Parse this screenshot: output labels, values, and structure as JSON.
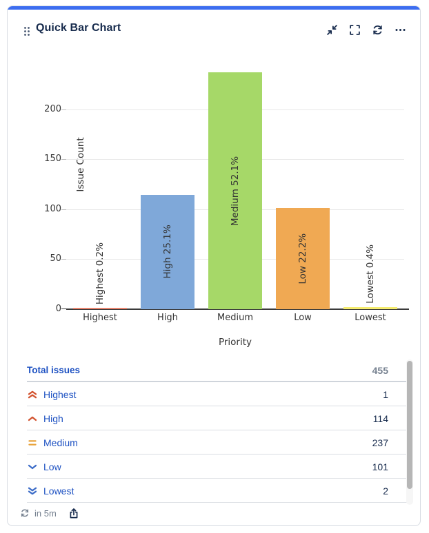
{
  "header": {
    "title": "Quick Bar Chart",
    "icons": [
      "drag-handle-icon",
      "minimize-icon",
      "fullscreen-icon",
      "refresh-icon",
      "more-icon"
    ],
    "accent_color": "#3C6DF0",
    "icon_color": "#172b4d"
  },
  "chart_data": {
    "type": "bar",
    "categories": [
      "Highest",
      "High",
      "Medium",
      "Low",
      "Lowest"
    ],
    "values": [
      1,
      114,
      237,
      101,
      2
    ],
    "bar_labels": [
      "Highest 0.2%",
      "High 25.1%",
      "Medium 52.1%",
      "Low 22.2%",
      "Lowest 0.4%"
    ],
    "bar_colors": [
      "#E8846E",
      "#7FA8D9",
      "#A6D868",
      "#F0A953",
      "#F5EC6F"
    ],
    "title": "",
    "xlabel": "Priority",
    "ylabel": "Issue Count",
    "ylim": [
      0,
      250
    ],
    "yticks": [
      0,
      50,
      100,
      150,
      200
    ],
    "grid": true,
    "legend": "none"
  },
  "table": {
    "header": {
      "label": "Total issues",
      "value": "455"
    },
    "rows": [
      {
        "icon": "priority-highest-icon",
        "icon_color": "#D2532F",
        "label": "Highest",
        "value": "1"
      },
      {
        "icon": "priority-high-icon",
        "icon_color": "#D2532F",
        "label": "High",
        "value": "114"
      },
      {
        "icon": "priority-medium-icon",
        "icon_color": "#E8A33C",
        "label": "Medium",
        "value": "237"
      },
      {
        "icon": "priority-low-icon",
        "icon_color": "#3D6DC8",
        "label": "Low",
        "value": "101"
      },
      {
        "icon": "priority-lowest-icon",
        "icon_color": "#3D6DC8",
        "label": "Lowest",
        "value": "2"
      }
    ],
    "link_color": "#1d51c2",
    "value_color": "#172b4d"
  },
  "footer": {
    "refresh_in": "in 5m",
    "icons": [
      "refresh-icon",
      "share-icon"
    ]
  }
}
